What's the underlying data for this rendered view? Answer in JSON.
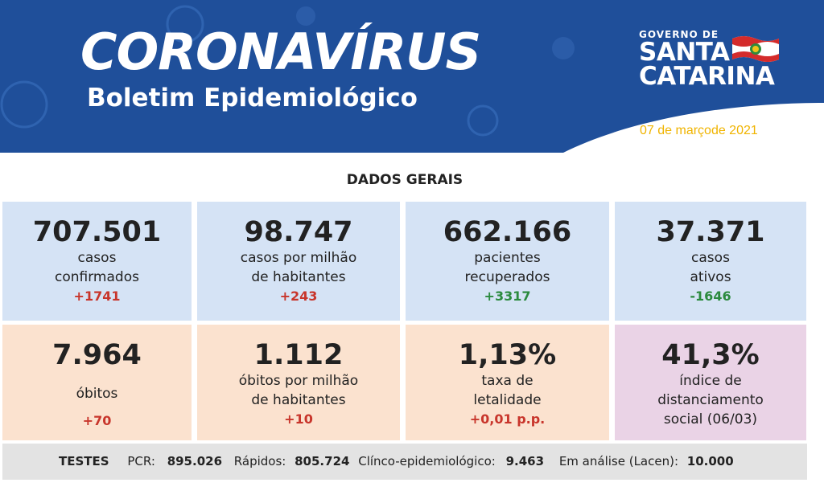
{
  "header": {
    "title": "CORONAVÍRUS",
    "subtitle": "Boletim Epidemiológico",
    "gov_small": "GOVERNO DE",
    "gov_line1": "SANTA",
    "gov_line2": "CATARINA",
    "date": "07 de marçode 2021"
  },
  "section_title": "DADOS GERAIS",
  "cards_row1": [
    {
      "value": "707.501",
      "line1": "casos",
      "line2": "confirmados",
      "delta": "+1741"
    },
    {
      "value": "98.747",
      "line1": "casos por milhão",
      "line2": "de habitantes",
      "delta": "+243"
    },
    {
      "value": "662.166",
      "line1": "pacientes",
      "line2": "recuperados",
      "delta": "+3317"
    },
    {
      "value": "37.371",
      "line1": "casos",
      "line2": "ativos",
      "delta": "-1646"
    }
  ],
  "cards_row2": [
    {
      "value": "7.964",
      "line1": "óbitos",
      "delta": "+70"
    },
    {
      "value": "1.112",
      "line1": "óbitos por milhão",
      "line2": "de habitantes",
      "delta": "+10"
    },
    {
      "value": "1,13%",
      "line1": "taxa de",
      "line2": "letalidade",
      "delta": "+0,01 p.p."
    },
    {
      "value": "41,3%",
      "line1": "índice de",
      "line2": "distanciamento",
      "line3": "social (06/03)"
    }
  ],
  "footer": {
    "label": "TESTES",
    "pcr_label": "PCR:",
    "pcr_value": "895.026",
    "rapidos_label": "Rápidos:",
    "rapidos_value": "805.724",
    "clinico_label": "Clínco-epidemiológico:",
    "clinico_value": "9.463",
    "lacen_label": "Em análise (Lacen):",
    "lacen_value": "10.000"
  },
  "colors": {
    "banner_blue": "#1f4f9a",
    "card_blue": "#d5e3f5",
    "card_peach": "#fbe2cf",
    "card_pink": "#ead3e6",
    "delta_red": "#c8352b",
    "delta_green": "#2b8a3e",
    "date_yellow": "#f0b400"
  }
}
